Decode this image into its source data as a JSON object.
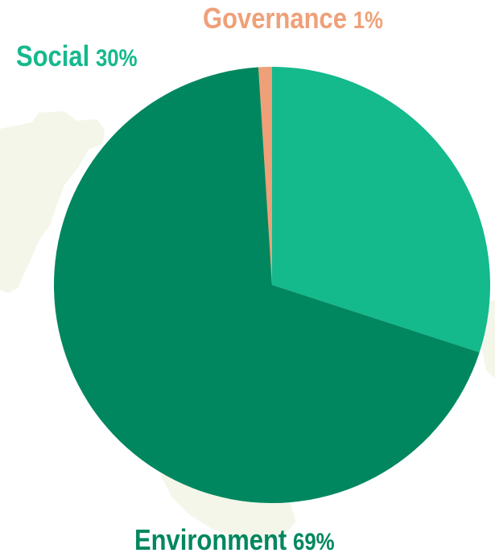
{
  "chart_data": {
    "type": "pie",
    "categories": [
      "Governance",
      "Social",
      "Environment"
    ],
    "values": [
      1,
      30,
      69
    ],
    "unit": "%",
    "colors": [
      "#EFA078",
      "#14B98C",
      "#00875F"
    ],
    "labels": [
      {
        "name": "Governance",
        "pct": "1%"
      },
      {
        "name": "Social",
        "pct": "30%"
      },
      {
        "name": "Environment",
        "pct": "69%"
      }
    ],
    "title": "",
    "legend": "none",
    "start_angle_deg": -3.6,
    "direction": "clockwise"
  },
  "colors": {
    "background": "#FFFFFF",
    "map_tint": "#F4F6EA"
  }
}
